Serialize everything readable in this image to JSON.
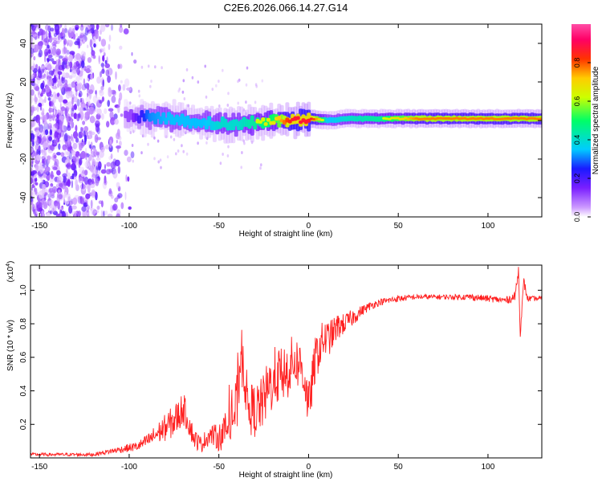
{
  "figure_title": "C2E6.2026.066.14.27.G14",
  "chart_data": [
    {
      "type": "heatmap",
      "xlabel": "Height of straight line (km)",
      "ylabel": "Frequency (Hz)",
      "xlim": [
        -155,
        130
      ],
      "ylim": [
        -50,
        50
      ],
      "xticks": [
        -150,
        -100,
        -50,
        0,
        50,
        100
      ],
      "yticks": [
        -40,
        -20,
        0,
        20,
        40
      ],
      "colorbar": {
        "label": "Normalized spectral amplitude",
        "range": [
          0.0,
          1.0
        ],
        "ticks": [
          0.0,
          0.2,
          0.4,
          0.6,
          0.8
        ],
        "colors": [
          "#ffffff",
          "#cc99ff",
          "#7a1fff",
          "#1a1aff",
          "#00ccff",
          "#00ff66",
          "#ccff00",
          "#ffcc00",
          "#ff3300",
          "#ff0066",
          "#ff4da6"
        ]
      },
      "ridge": {
        "x": [
          -100,
          -90,
          -80,
          -70,
          -60,
          -50,
          -40,
          -30,
          -20,
          -10,
          0,
          10,
          20,
          40,
          60,
          80,
          100,
          120,
          130
        ],
        "frequency_hz": [
          2,
          2,
          1,
          0,
          -1,
          -2,
          -2,
          -1,
          0,
          0,
          1,
          0,
          1,
          1,
          1,
          1,
          1,
          1,
          1
        ],
        "amplitude": [
          0.2,
          0.45,
          0.5,
          0.5,
          0.5,
          0.55,
          0.55,
          0.6,
          0.65,
          0.85,
          0.85,
          0.5,
          0.55,
          0.6,
          0.75,
          0.75,
          0.75,
          0.75,
          0.75
        ]
      },
      "noise_region": {
        "x_range": [
          -155,
          -95
        ],
        "amplitude": 0.25
      }
    },
    {
      "type": "line",
      "series_name": "SNR",
      "color": "#ff2020",
      "xlabel": "Height of straight line (km)",
      "ylabel": "SNR (10 * v/v)",
      "yscale_label": "(x10",
      "yscale_exponent": "4",
      "xlim": [
        -155,
        130
      ],
      "ylim": [
        0,
        1.15
      ],
      "xticks": [
        -150,
        -100,
        -50,
        0,
        50,
        100
      ],
      "yticks": [
        0.2,
        0.4,
        0.6,
        0.8,
        1.0
      ],
      "x": [
        -155,
        -120,
        -105,
        -95,
        -90,
        -85,
        -80,
        -75,
        -72,
        -70,
        -67,
        -64,
        -60,
        -55,
        -50,
        -45,
        -40,
        -38,
        -36,
        -34,
        -30,
        -26,
        -22,
        -18,
        -15,
        -12,
        -8,
        -4,
        -2,
        0,
        4,
        8,
        12,
        16,
        20,
        25,
        30,
        35,
        40,
        45,
        50,
        60,
        70,
        80,
        90,
        100,
        110,
        115,
        117,
        118,
        120,
        122,
        125,
        130
      ],
      "values": [
        0.02,
        0.02,
        0.05,
        0.07,
        0.1,
        0.14,
        0.18,
        0.22,
        0.26,
        0.3,
        0.22,
        0.12,
        0.08,
        0.14,
        0.12,
        0.18,
        0.3,
        0.6,
        0.55,
        0.3,
        0.28,
        0.32,
        0.42,
        0.5,
        0.48,
        0.52,
        0.58,
        0.55,
        0.45,
        0.3,
        0.6,
        0.7,
        0.72,
        0.78,
        0.8,
        0.84,
        0.88,
        0.91,
        0.93,
        0.94,
        0.95,
        0.96,
        0.96,
        0.96,
        0.96,
        0.95,
        0.94,
        0.96,
        1.12,
        0.75,
        1.05,
        0.95,
        0.95,
        0.95
      ],
      "noise_amplitude": [
        0.01,
        0.01,
        0.02,
        0.03,
        0.04,
        0.06,
        0.08,
        0.1,
        0.1,
        0.1,
        0.08,
        0.06,
        0.05,
        0.06,
        0.08,
        0.12,
        0.2,
        0.18,
        0.18,
        0.16,
        0.16,
        0.16,
        0.18,
        0.18,
        0.18,
        0.18,
        0.16,
        0.15,
        0.15,
        0.14,
        0.14,
        0.12,
        0.1,
        0.08,
        0.06,
        0.05,
        0.03,
        0.025,
        0.02,
        0.02,
        0.02,
        0.015,
        0.015,
        0.015,
        0.02,
        0.02,
        0.02,
        0.03,
        0.03,
        0.03,
        0.03,
        0.02,
        0.015,
        0.015
      ]
    }
  ]
}
